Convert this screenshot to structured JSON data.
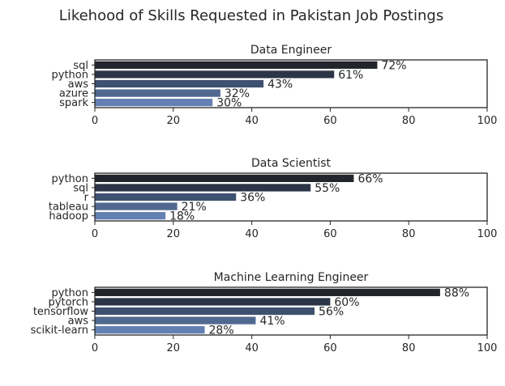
{
  "chart_data": {
    "title": "Likehood of Skills Requested in Pakistan Job Postings",
    "value_suffix": "%",
    "bar_colors": [
      "#22262c",
      "#2c3447",
      "#3f5170",
      "#51698f",
      "#6480b3"
    ],
    "panels": [
      {
        "type": "bar",
        "orientation": "horizontal",
        "title": "Data Engineer",
        "categories": [
          "sql",
          "python",
          "aws",
          "azure",
          "spark"
        ],
        "values": [
          72,
          61,
          43,
          32,
          30
        ],
        "xlim": [
          0,
          100
        ],
        "xticks": [
          "0",
          "20",
          "40",
          "60",
          "80",
          "100"
        ],
        "xlabel": "",
        "ylabel": ""
      },
      {
        "type": "bar",
        "orientation": "horizontal",
        "title": "Data Scientist",
        "categories": [
          "python",
          "sql",
          "r",
          "tableau",
          "hadoop"
        ],
        "values": [
          66,
          55,
          36,
          21,
          18
        ],
        "xlim": [
          0,
          100
        ],
        "xticks": [
          "0",
          "20",
          "40",
          "60",
          "80",
          "100"
        ],
        "xlabel": "",
        "ylabel": ""
      },
      {
        "type": "bar",
        "orientation": "horizontal",
        "title": "Machine Learning Engineer",
        "categories": [
          "python",
          "pytorch",
          "tensorflow",
          "aws",
          "scikit-learn"
        ],
        "values": [
          88,
          60,
          56,
          41,
          28
        ],
        "xlim": [
          0,
          100
        ],
        "xticks": [
          "0",
          "20",
          "40",
          "60",
          "80",
          "100"
        ],
        "xlabel": "",
        "ylabel": ""
      }
    ]
  }
}
